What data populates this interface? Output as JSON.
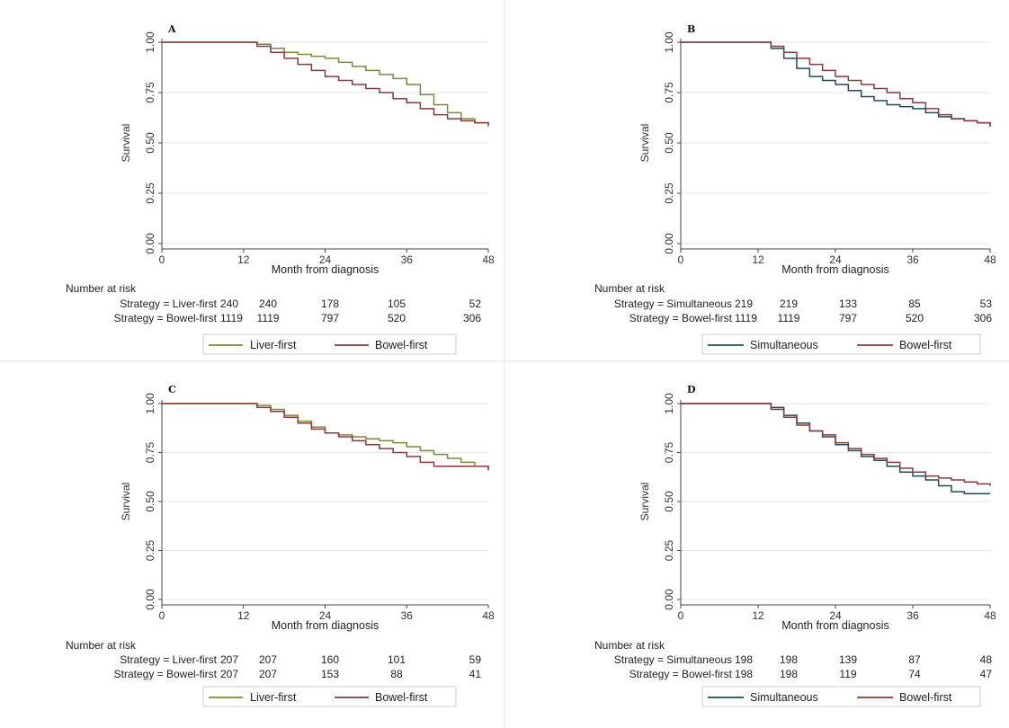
{
  "colors": {
    "liver_first": "#7a8a3c",
    "bowel_first": "#8b3a3a",
    "simultaneous": "#1f4a5a",
    "grid": "#e6e6e6",
    "axis": "#444444"
  },
  "chart_data": [
    {
      "type": "line",
      "panel": "A",
      "ylabel": "Survival",
      "xlabel": "Month from diagnosis",
      "xlim": [
        0,
        48
      ],
      "ylim": [
        0,
        1
      ],
      "x_ticks": [
        "0",
        "12",
        "24",
        "36",
        "48"
      ],
      "y_ticks": [
        "0.00",
        "0.25",
        "0.50",
        "0.75",
        "1.00"
      ],
      "grid": true,
      "series": [
        {
          "name": "Liver-first",
          "color_key": "liver_first",
          "x": [
            0,
            12,
            14,
            16,
            18,
            20,
            22,
            24,
            26,
            28,
            30,
            32,
            34,
            36,
            38,
            40,
            42,
            44,
            46,
            48
          ],
          "y": [
            1.0,
            1.0,
            0.99,
            0.97,
            0.95,
            0.94,
            0.93,
            0.92,
            0.9,
            0.88,
            0.86,
            0.84,
            0.82,
            0.79,
            0.74,
            0.69,
            0.65,
            0.62,
            0.6,
            0.58
          ]
        },
        {
          "name": "Bowel-first",
          "color_key": "bowel_first",
          "x": [
            0,
            12,
            14,
            16,
            18,
            20,
            22,
            24,
            26,
            28,
            30,
            32,
            34,
            36,
            38,
            40,
            42,
            44,
            46,
            48
          ],
          "y": [
            1.0,
            1.0,
            0.98,
            0.95,
            0.92,
            0.89,
            0.86,
            0.83,
            0.81,
            0.79,
            0.77,
            0.75,
            0.72,
            0.7,
            0.67,
            0.64,
            0.62,
            0.61,
            0.6,
            0.59
          ]
        }
      ],
      "risk_table": {
        "title": "Number at risk",
        "rows": [
          {
            "label": "Strategy = Liver-first",
            "values": [
              "240",
              "240",
              "178",
              "105",
              "52"
            ]
          },
          {
            "label": "Strategy = Bowel-first",
            "values": [
              "1119",
              "1119",
              "797",
              "520",
              "306"
            ]
          }
        ]
      },
      "legend": [
        "Liver-first",
        "Bowel-first"
      ]
    },
    {
      "type": "line",
      "panel": "B",
      "ylabel": "Survival",
      "xlabel": "Month from diagnosis",
      "xlim": [
        0,
        48
      ],
      "ylim": [
        0,
        1
      ],
      "x_ticks": [
        "0",
        "12",
        "24",
        "36",
        "48"
      ],
      "y_ticks": [
        "0.00",
        "0.25",
        "0.50",
        "0.75",
        "1.00"
      ],
      "grid": true,
      "series": [
        {
          "name": "Simultaneous",
          "color_key": "simultaneous",
          "x": [
            0,
            12,
            14,
            16,
            18,
            20,
            22,
            24,
            26,
            28,
            30,
            32,
            34,
            36,
            38,
            40,
            42,
            44,
            46,
            48
          ],
          "y": [
            1.0,
            1.0,
            0.97,
            0.92,
            0.87,
            0.83,
            0.81,
            0.79,
            0.76,
            0.73,
            0.71,
            0.69,
            0.68,
            0.67,
            0.65,
            0.63,
            0.62,
            0.61,
            0.6,
            0.58
          ]
        },
        {
          "name": "Bowel-first",
          "color_key": "bowel_first",
          "x": [
            0,
            12,
            14,
            16,
            18,
            20,
            22,
            24,
            26,
            28,
            30,
            32,
            34,
            36,
            38,
            40,
            42,
            44,
            46,
            48
          ],
          "y": [
            1.0,
            1.0,
            0.98,
            0.95,
            0.92,
            0.89,
            0.86,
            0.83,
            0.81,
            0.79,
            0.77,
            0.75,
            0.72,
            0.7,
            0.67,
            0.64,
            0.62,
            0.61,
            0.6,
            0.59
          ]
        }
      ],
      "risk_table": {
        "title": "Number at risk",
        "rows": [
          {
            "label": "Strategy = Simultaneous",
            "values": [
              "219",
              "219",
              "133",
              "85",
              "53"
            ]
          },
          {
            "label": "Strategy = Bowel-first",
            "values": [
              "1119",
              "1119",
              "797",
              "520",
              "306"
            ]
          }
        ]
      },
      "legend": [
        "Simultaneous",
        "Bowel-first"
      ]
    },
    {
      "type": "line",
      "panel": "C",
      "ylabel": "Survival",
      "xlabel": "Month from diagnosis",
      "xlim": [
        0,
        48
      ],
      "ylim": [
        0,
        1
      ],
      "x_ticks": [
        "0",
        "12",
        "24",
        "36",
        "48"
      ],
      "y_ticks": [
        "0.00",
        "0.25",
        "0.50",
        "0.75",
        "1.00"
      ],
      "grid": true,
      "series": [
        {
          "name": "Liver-first",
          "color_key": "liver_first",
          "x": [
            0,
            12,
            14,
            16,
            18,
            20,
            22,
            24,
            26,
            28,
            30,
            32,
            34,
            36,
            38,
            40,
            42,
            44,
            46,
            48
          ],
          "y": [
            1.0,
            1.0,
            0.99,
            0.97,
            0.94,
            0.91,
            0.88,
            0.85,
            0.84,
            0.83,
            0.82,
            0.81,
            0.8,
            0.78,
            0.76,
            0.74,
            0.72,
            0.7,
            0.68,
            0.66
          ]
        },
        {
          "name": "Bowel-first",
          "color_key": "bowel_first",
          "x": [
            0,
            12,
            14,
            16,
            18,
            20,
            22,
            24,
            26,
            28,
            30,
            32,
            34,
            36,
            38,
            40,
            42,
            44,
            46,
            48
          ],
          "y": [
            1.0,
            1.0,
            0.98,
            0.96,
            0.93,
            0.9,
            0.87,
            0.85,
            0.83,
            0.81,
            0.79,
            0.77,
            0.75,
            0.73,
            0.7,
            0.68,
            0.68,
            0.68,
            0.68,
            0.66
          ]
        }
      ],
      "risk_table": {
        "title": "Number at risk",
        "rows": [
          {
            "label": "Strategy = Liver-first",
            "values": [
              "207",
              "207",
              "160",
              "101",
              "59"
            ]
          },
          {
            "label": "Strategy = Bowel-first",
            "values": [
              "207",
              "207",
              "153",
              "88",
              "41"
            ]
          }
        ]
      },
      "legend": [
        "Liver-first",
        "Bowel-first"
      ]
    },
    {
      "type": "line",
      "panel": "D",
      "ylabel": "Survival",
      "xlabel": "Month from diagnosis",
      "xlim": [
        0,
        48
      ],
      "ylim": [
        0,
        1
      ],
      "x_ticks": [
        "0",
        "12",
        "24",
        "36",
        "48"
      ],
      "y_ticks": [
        "0.00",
        "0.25",
        "0.50",
        "0.75",
        "1.00"
      ],
      "grid": true,
      "series": [
        {
          "name": "Simultaneous",
          "color_key": "simultaneous",
          "x": [
            0,
            12,
            14,
            16,
            18,
            20,
            22,
            24,
            26,
            28,
            30,
            32,
            34,
            36,
            38,
            40,
            42,
            44,
            46,
            48
          ],
          "y": [
            1.0,
            1.0,
            0.98,
            0.94,
            0.9,
            0.86,
            0.83,
            0.79,
            0.76,
            0.73,
            0.71,
            0.68,
            0.65,
            0.63,
            0.61,
            0.58,
            0.55,
            0.54,
            0.54,
            0.54
          ]
        },
        {
          "name": "Bowel-first",
          "color_key": "bowel_first",
          "x": [
            0,
            12,
            14,
            16,
            18,
            20,
            22,
            24,
            26,
            28,
            30,
            32,
            34,
            36,
            38,
            40,
            42,
            44,
            46,
            48
          ],
          "y": [
            1.0,
            1.0,
            0.97,
            0.93,
            0.89,
            0.86,
            0.84,
            0.8,
            0.77,
            0.74,
            0.72,
            0.7,
            0.67,
            0.65,
            0.63,
            0.62,
            0.61,
            0.6,
            0.59,
            0.58
          ]
        }
      ],
      "risk_table": {
        "title": "Number at risk",
        "rows": [
          {
            "label": "Strategy = Simultaneous",
            "values": [
              "198",
              "198",
              "139",
              "87",
              "48"
            ]
          },
          {
            "label": "Strategy = Bowel-first",
            "values": [
              "198",
              "198",
              "119",
              "74",
              "47"
            ]
          }
        ]
      },
      "legend": [
        "Simultaneous",
        "Bowel-first"
      ]
    }
  ]
}
